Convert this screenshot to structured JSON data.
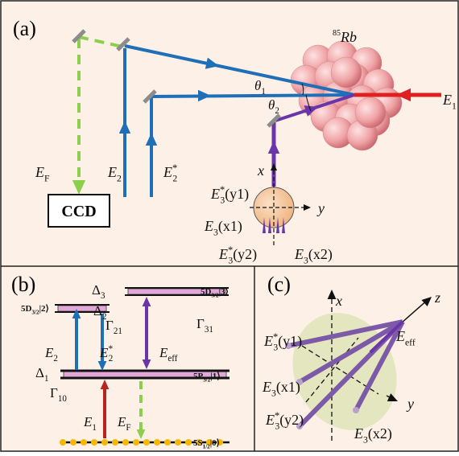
{
  "panel_a": {
    "tag": "(a)",
    "atom": {
      "sup": "85",
      "main": "Rb"
    },
    "ccd": "CCD",
    "labels": [
      {
        "main": "θ",
        "sub": "1"
      },
      {
        "main": "θ",
        "sub": "2"
      },
      {
        "main": "E",
        "sub": "1"
      },
      {
        "main": "E",
        "sub": "2"
      },
      {
        "main": "E",
        "sup": "*",
        "sub": "2"
      },
      {
        "main": "E",
        "sub": "F"
      },
      {
        "main": "x"
      },
      {
        "main": "y"
      },
      {
        "main": "E",
        "sup": "*",
        "sub": "3",
        "tail": "(y1)"
      },
      {
        "main": "E",
        "sub": "3",
        "tail": "(x1)"
      },
      {
        "main": "E",
        "sup": "*",
        "sub": "3",
        "tail": "(y2)"
      },
      {
        "main": "E",
        "sub": "3",
        "tail": "(x2)"
      }
    ]
  },
  "panel_b": {
    "tag": "(b)",
    "labels": [
      {
        "main": "Δ",
        "sub": "3"
      },
      {
        "main": "5D",
        "sub": "3/2",
        "tail": "|3⟩"
      },
      {
        "main": "5D",
        "sub": "3/2",
        "tail": "|2⟩"
      },
      {
        "main": "Δ",
        "sub": "2"
      },
      {
        "main": "Γ",
        "sub": "21"
      },
      {
        "main": "Γ",
        "sub": "31"
      },
      {
        "main": "E",
        "sub": "2"
      },
      {
        "main": "E",
        "sup": "*",
        "sub": "2"
      },
      {
        "main": "E",
        "sub": "eff"
      },
      {
        "main": "Δ",
        "sub": "1"
      },
      {
        "main": "5P",
        "sub": "3/2",
        "tail": "|1⟩"
      },
      {
        "main": "Γ",
        "sub": "10"
      },
      {
        "main": "E",
        "sub": "1"
      },
      {
        "main": "E",
        "sub": "F"
      },
      {
        "main": "5S",
        "sub": "1/2",
        "tail": "|0⟩"
      }
    ]
  },
  "panel_c": {
    "tag": "(c)",
    "labels": [
      {
        "main": "x"
      },
      {
        "main": "z"
      },
      {
        "main": "y"
      },
      {
        "main": "E",
        "sup": "*",
        "sub": "3",
        "tail": "(y1)"
      },
      {
        "main": "E",
        "sub": "eff"
      },
      {
        "main": "E",
        "sub": "3",
        "tail": "(x1)"
      },
      {
        "main": "E",
        "sup": "*",
        "sub": "3",
        "tail": "(y2)"
      },
      {
        "main": "E",
        "sub": "3",
        "tail": "(x2)"
      }
    ]
  }
}
